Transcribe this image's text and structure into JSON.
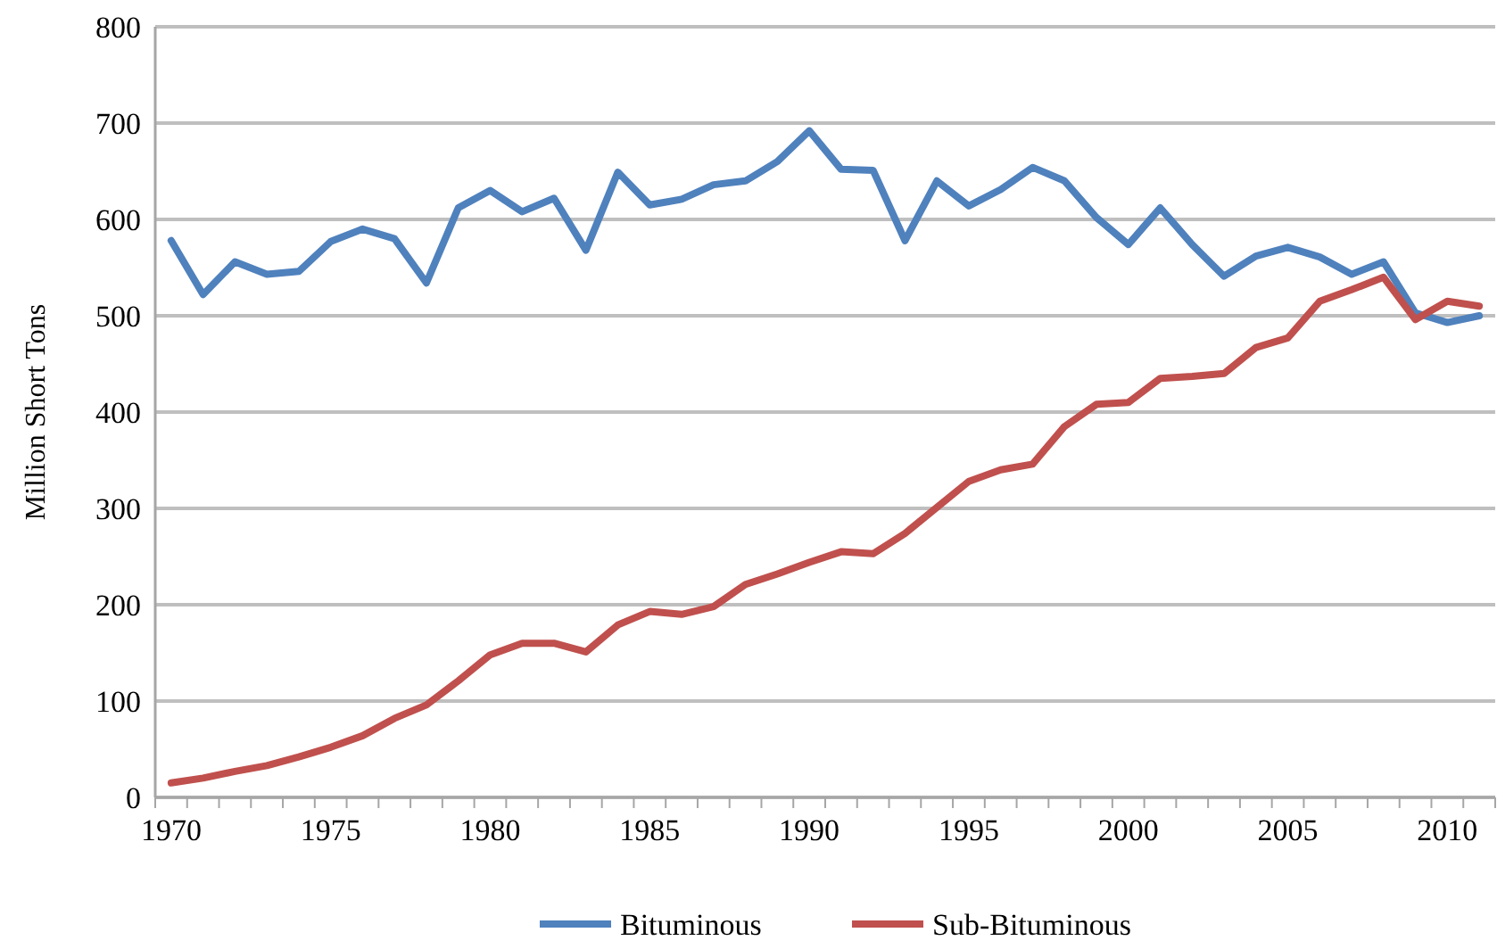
{
  "chart_data": {
    "type": "line",
    "ylabel": "Million Short Tons",
    "categories": [
      "1970",
      null,
      null,
      null,
      null,
      "1975",
      null,
      null,
      null,
      null,
      "1980",
      null,
      null,
      null,
      null,
      "1985",
      null,
      null,
      null,
      null,
      "1990",
      null,
      null,
      null,
      null,
      "1995",
      null,
      null,
      null,
      null,
      "2000",
      null,
      null,
      null,
      null,
      "2005",
      null,
      null,
      null,
      null,
      "2010",
      null
    ],
    "series": [
      {
        "name": "Bituminous",
        "color": "#4f81bd",
        "values": [
          578,
          522,
          556,
          543,
          546,
          577,
          590,
          580,
          534,
          612,
          630,
          608,
          622,
          568,
          649,
          615,
          621,
          636,
          640,
          660,
          692,
          652,
          651,
          578,
          640,
          614,
          631,
          654,
          640,
          602,
          574,
          612,
          574,
          541,
          562,
          571,
          561,
          543,
          556,
          503,
          493,
          500
        ]
      },
      {
        "name": "Sub-Bituminous",
        "color": "#c0504d",
        "values": [
          15,
          20,
          27,
          33,
          42,
          52,
          64,
          82,
          96,
          121,
          148,
          160,
          160,
          151,
          179,
          193,
          190,
          198,
          221,
          232,
          244,
          255,
          253,
          274,
          301,
          328,
          340,
          346,
          385,
          408,
          410,
          435,
          437,
          440,
          467,
          477,
          515,
          527,
          540,
          496,
          515,
          510
        ]
      }
    ],
    "ylim": [
      0,
      800
    ],
    "yticks": [
      0,
      100,
      200,
      300,
      400,
      500,
      600,
      700,
      800
    ],
    "grid": "y",
    "legend": "bottom",
    "marker": "none",
    "line_style": "solid"
  }
}
